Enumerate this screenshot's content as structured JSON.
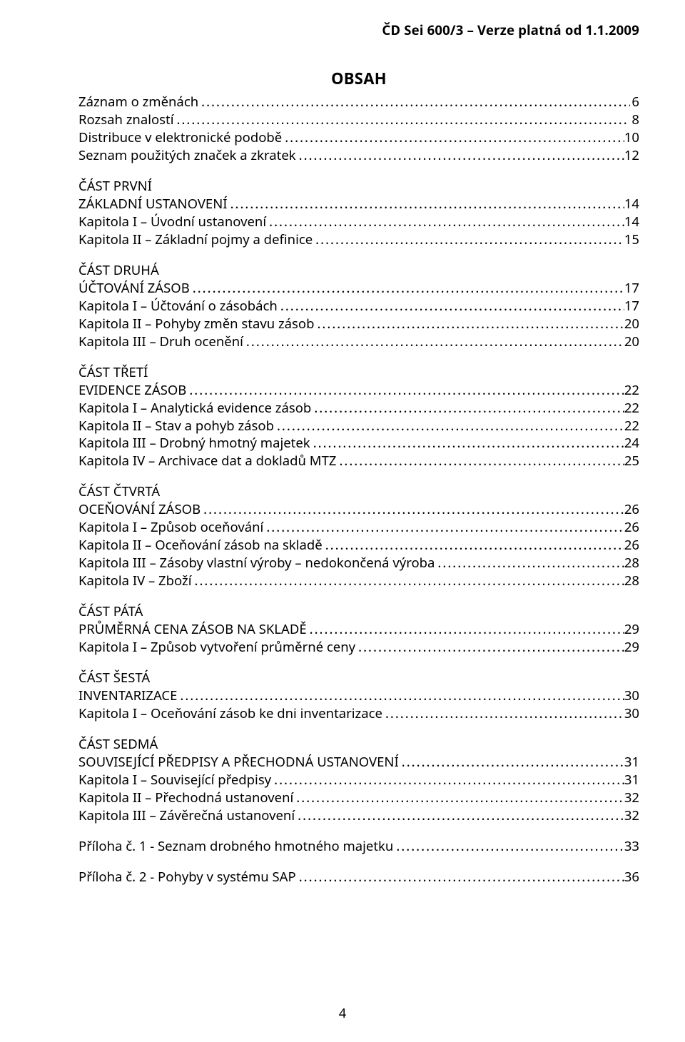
{
  "header": "ČD Sei 600/3 – Verze platná od 1.1.2009",
  "title": "OBSAH",
  "page_number": "4",
  "dots_char": ".",
  "entries": [
    {
      "label": "Záznam o změnách",
      "page": "6",
      "level": 0,
      "section": false
    },
    {
      "label": "Rozsah znalostí",
      "page": "8",
      "level": 0,
      "section": false
    },
    {
      "label": "Distribuce v elektronické podobě",
      "page": "10",
      "level": 0,
      "section": false
    },
    {
      "label": "Seznam použitých značek a zkratek",
      "page": "12",
      "level": 0,
      "section": false
    },
    {
      "label": "ČÁST PRVNÍ",
      "page": "",
      "level": 0,
      "section": true,
      "nopage": true,
      "nodots": true
    },
    {
      "label": "ZÁKLADNÍ USTANOVENÍ",
      "page": "14",
      "level": 0,
      "section": false
    },
    {
      "label": "Kapitola I – Úvodní ustanovení",
      "page": "14",
      "level": 0,
      "section": false
    },
    {
      "label": "Kapitola II – Základní pojmy a definice",
      "page": "15",
      "level": 0,
      "section": false
    },
    {
      "label": "ČÁST DRUHÁ",
      "page": "",
      "level": 0,
      "section": true,
      "nopage": true,
      "nodots": true
    },
    {
      "label": "ÚČTOVÁNÍ ZÁSOB",
      "page": "17",
      "level": 0,
      "section": false
    },
    {
      "label": "Kapitola I – Účtování o zásobách",
      "page": "17",
      "level": 0,
      "section": false
    },
    {
      "label": "Kapitola II – Pohyby změn stavu zásob",
      "page": "20",
      "level": 0,
      "section": false
    },
    {
      "label": "Kapitola III – Druh ocenění",
      "page": "20",
      "level": 0,
      "section": false
    },
    {
      "label": "ČÁST TŘETÍ",
      "page": "",
      "level": 0,
      "section": true,
      "nopage": true,
      "nodots": true
    },
    {
      "label": "EVIDENCE ZÁSOB",
      "page": "22",
      "level": 0,
      "section": false
    },
    {
      "label": "Kapitola I – Analytická evidence zásob",
      "page": "22",
      "level": 0,
      "section": false
    },
    {
      "label": "Kapitola II – Stav a pohyb zásob",
      "page": "22",
      "level": 0,
      "section": false
    },
    {
      "label": "Kapitola III – Drobný hmotný majetek",
      "page": "24",
      "level": 0,
      "section": false
    },
    {
      "label": "Kapitola IV – Archivace dat a dokladů MTZ",
      "page": "25",
      "level": 0,
      "section": false
    },
    {
      "label": "ČÁST ČTVRTÁ",
      "page": "",
      "level": 0,
      "section": true,
      "nopage": true,
      "nodots": true
    },
    {
      "label": "OCEŇOVÁNÍ ZÁSOB",
      "page": "26",
      "level": 0,
      "section": false
    },
    {
      "label": "Kapitola I – Způsob oceňování",
      "page": "26",
      "level": 0,
      "section": false
    },
    {
      "label": "Kapitola II – Oceňování zásob na skladě",
      "page": "26",
      "level": 0,
      "section": false
    },
    {
      "label": "Kapitola III – Zásoby vlastní výroby – nedokončená výroba",
      "page": "28",
      "level": 0,
      "section": false
    },
    {
      "label": "Kapitola IV – Zboží",
      "page": "28",
      "level": 0,
      "section": false
    },
    {
      "label": "ČÁST PÁTÁ",
      "page": "",
      "level": 0,
      "section": true,
      "nopage": true,
      "nodots": true
    },
    {
      "label": "PRŮMĚRNÁ CENA ZÁSOB NA SKLADĚ",
      "page": "29",
      "level": 0,
      "section": false
    },
    {
      "label": "Kapitola I – Způsob vytvoření průměrné ceny",
      "page": "29",
      "level": 0,
      "section": false
    },
    {
      "label": "ČÁST ŠESTÁ",
      "page": "",
      "level": 0,
      "section": true,
      "nopage": true,
      "nodots": true
    },
    {
      "label": "INVENTARIZACE",
      "page": "30",
      "level": 0,
      "section": false
    },
    {
      "label": "Kapitola I – Oceňování zásob ke dni inventarizace",
      "page": "30",
      "level": 0,
      "section": false
    },
    {
      "label": "ČÁST SEDMÁ",
      "page": "",
      "level": 0,
      "section": true,
      "nopage": true,
      "nodots": true
    },
    {
      "label": "SOUVISEJÍCÍ PŘEDPISY A PŘECHODNÁ USTANOVENÍ",
      "page": "31",
      "level": 0,
      "section": false
    },
    {
      "label": "Kapitola I – Související předpisy",
      "page": "31",
      "level": 0,
      "section": false
    },
    {
      "label": "Kapitola II – Přechodná ustanovení",
      "page": "32",
      "level": 0,
      "section": false
    },
    {
      "label": "Kapitola III – Závěrečná ustanovení",
      "page": "32",
      "level": 0,
      "section": false
    },
    {
      "label": "Příloha č. 1 - Seznam drobného hmotného majetku",
      "page": "33",
      "level": 0,
      "section": false,
      "appendix": true
    },
    {
      "label": "Příloha č. 2 - Pohyby v systému SAP",
      "page": "36",
      "level": 0,
      "section": false,
      "appendix": true
    }
  ]
}
